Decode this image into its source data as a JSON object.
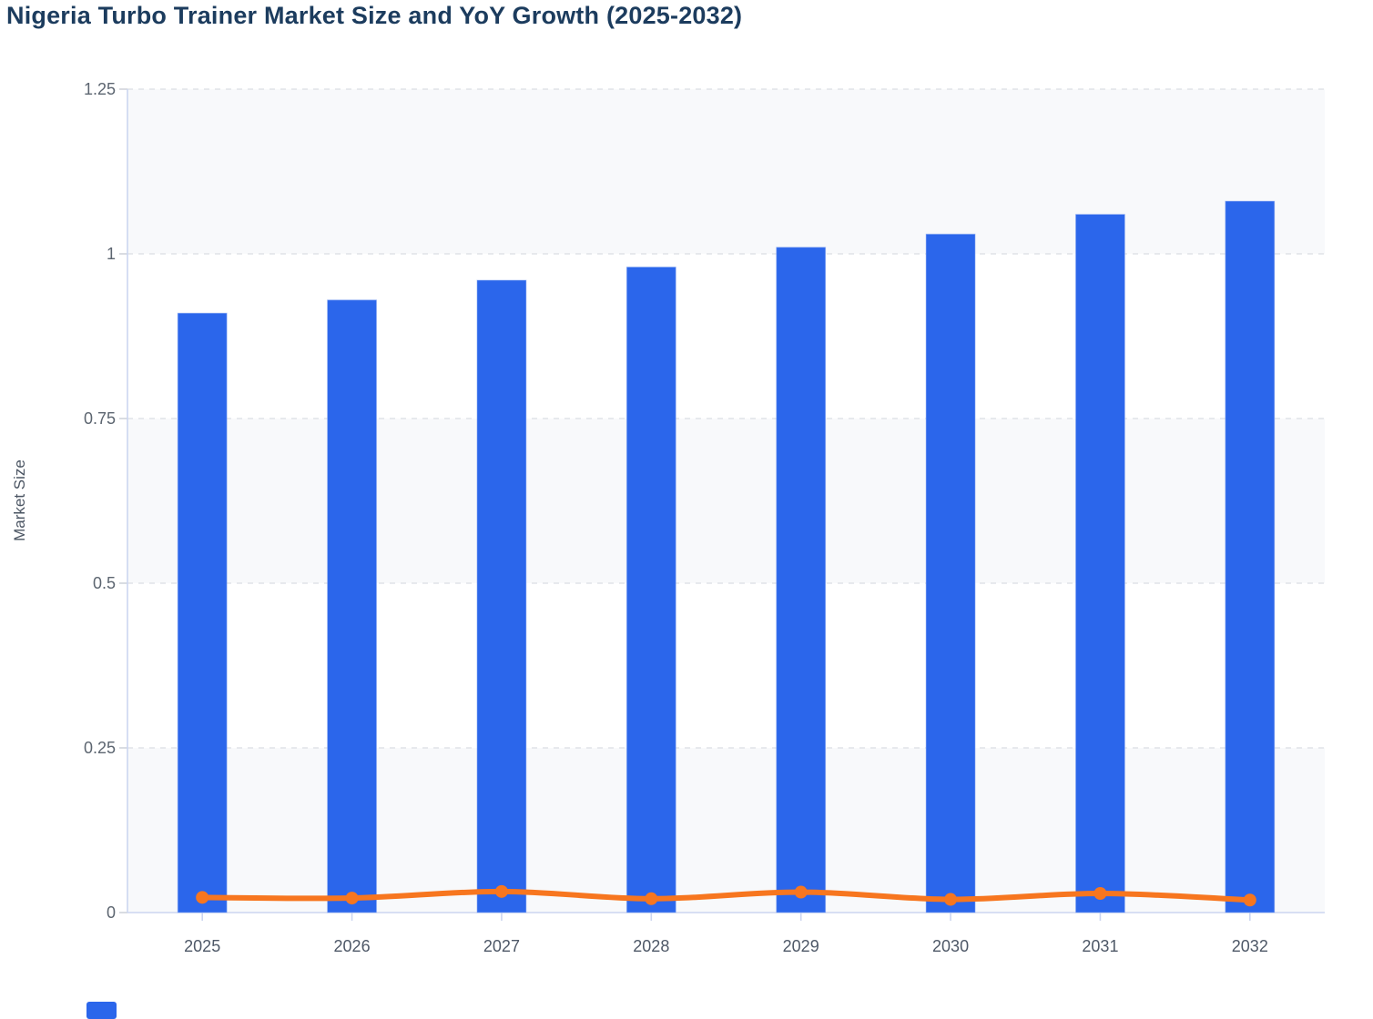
{
  "header": {
    "title": "Nigeria Turbo Trainer Market Size and YoY Growth (2025-2032)"
  },
  "chart_data": {
    "type": "bar",
    "subtype": "bar-line-combo",
    "title": "Nigeria Turbo Trainer Market Size and YoY Growth (2025-2032)",
    "categories": [
      "2025",
      "2026",
      "2027",
      "2028",
      "2029",
      "2030",
      "2031",
      "2032"
    ],
    "series": [
      {
        "name": "Market Size",
        "type": "bar",
        "color": "#2b66eb",
        "values": [
          0.91,
          0.93,
          0.96,
          0.98,
          1.01,
          1.03,
          1.06,
          1.08
        ]
      },
      {
        "name": "YoY Growth",
        "type": "line",
        "color": "#f7761f",
        "smooth": true,
        "values": [
          0.023,
          0.022,
          0.032,
          0.021,
          0.031,
          0.02,
          0.029,
          0.019
        ]
      }
    ],
    "xlabel": "",
    "ylabel": "Market Size",
    "ylim": [
      0,
      1.25
    ],
    "yticks": [
      0,
      0.25,
      0.5,
      0.75,
      1,
      1.25
    ],
    "ytick_labels": [
      "0",
      "0.25",
      "0.5",
      "0.75",
      "1",
      "1.25"
    ],
    "grid": "horizontal dashed gridlines with alternating band fills",
    "legend_position": "bottom-left, cut off at image edge (only partial blue swatch visible)",
    "colors": {
      "bar": "#2b66eb",
      "line": "#f7761f",
      "title": "#1c3c5e",
      "axis_line": "#ccd6f0",
      "axis_tick": "#c9cdd6",
      "grid_line": "#e0e3e8",
      "band_fill": "#f8f9fb",
      "band_alt_fill": "#ffffff",
      "y_tick_label": "#5c6570",
      "x_tick_label": "#4e5867",
      "y_axis_title": "#4a5462"
    }
  }
}
